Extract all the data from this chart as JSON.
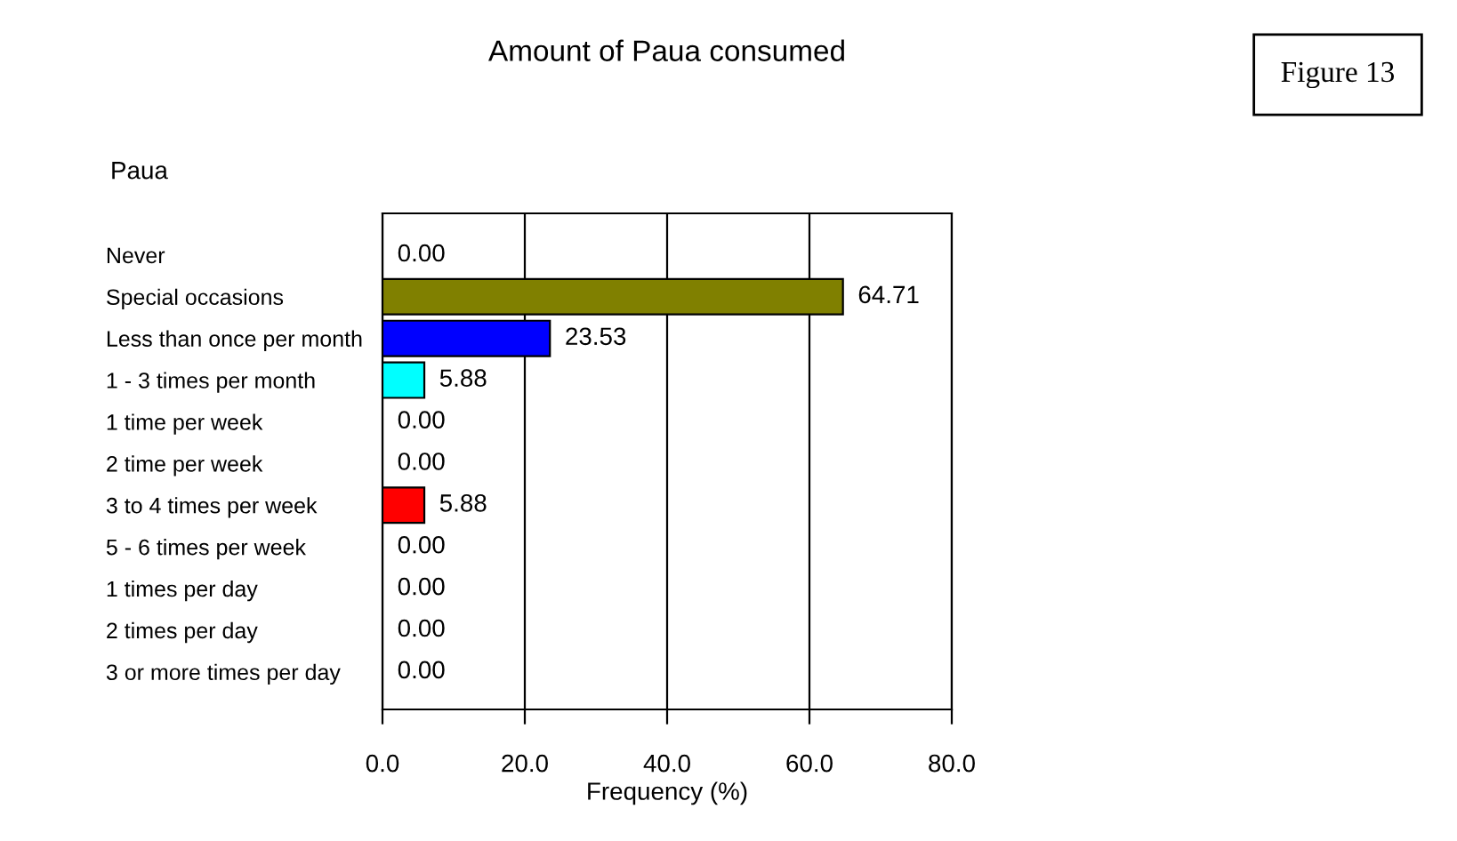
{
  "chart_data": {
    "type": "bar",
    "orientation": "horizontal",
    "title": "Amount of Paua consumed",
    "subtitle": "Paua",
    "xlabel": "Frequency (%)",
    "categories": [
      "Never",
      "Special occasions",
      "Less than once per month",
      "1 - 3 times per month",
      "1 time per week",
      "2 time per week",
      "3 to 4 times per week",
      "5 - 6 times per week",
      "1 times per day",
      "2 times per day",
      "3 or more times per day"
    ],
    "values": [
      0,
      64.71,
      23.53,
      5.88,
      0,
      0,
      5.88,
      0,
      0,
      0,
      0
    ],
    "value_labels": [
      "0.00",
      "64.71",
      "23.53",
      "5.88",
      "0.00",
      "0.00",
      "5.88",
      "0.00",
      "0.00",
      "0.00",
      "0.00"
    ],
    "colors": [
      null,
      "#808000",
      "#0000ff",
      "#00ffff",
      null,
      null,
      "#ff0000",
      null,
      null,
      null,
      null
    ],
    "xlim": [
      0,
      80
    ],
    "xticks": [
      {
        "value": 0,
        "label": "0.0"
      },
      {
        "value": 20,
        "label": "20.0"
      },
      {
        "value": 40,
        "label": "40.0"
      },
      {
        "value": 60,
        "label": "60.0"
      },
      {
        "value": 80,
        "label": "80.0"
      }
    ],
    "grid": "x",
    "annotations": [
      "Figure 13"
    ]
  }
}
